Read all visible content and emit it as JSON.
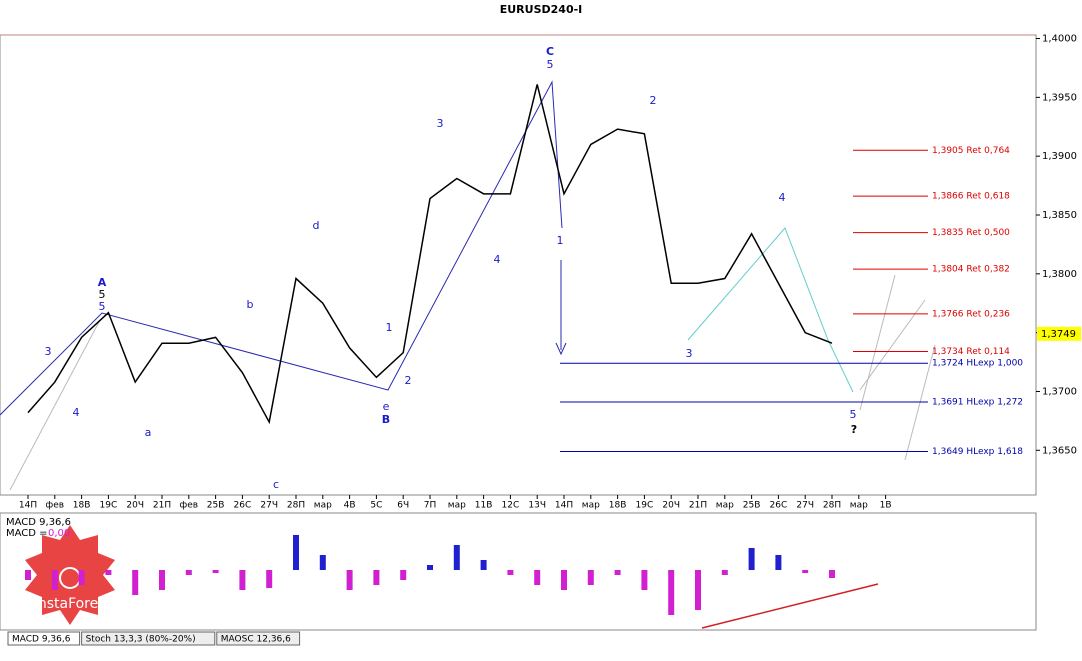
{
  "chart_data": {
    "type": "line",
    "title": "EURUSD240-I",
    "categories": [
      "14П",
      "фев",
      "18В",
      "19С",
      "20Ч",
      "21П",
      "фев",
      "25В",
      "26С",
      "27Ч",
      "28П",
      "мар",
      "4В",
      "5С",
      "6Ч",
      "7П",
      "мар",
      "11В",
      "12С",
      "13Ч",
      "14П",
      "мар",
      "18В",
      "19С",
      "20Ч",
      "21П",
      "мар",
      "25В",
      "26С",
      "27Ч",
      "28П",
      "мар",
      "1В"
    ],
    "values": [
      1.3682,
      1.3708,
      1.3746,
      1.3767,
      1.3708,
      1.3741,
      1.3741,
      1.3746,
      1.3716,
      1.3674,
      1.3796,
      1.3775,
      1.3737,
      1.3712,
      1.3733,
      1.3864,
      1.3881,
      1.3868,
      1.3868,
      1.3961,
      1.3868,
      1.391,
      1.3923,
      1.3919,
      1.3792,
      1.3792,
      1.3796,
      1.3834,
      1.3792,
      1.375,
      1.3741,
      null,
      null
    ],
    "color": "#000000",
    "ylim": [
      1.3612,
      1.4003
    ],
    "yticks": [
      {
        "value": 1.365,
        "label": "1,3650"
      },
      {
        "value": 1.37,
        "label": "1,3700"
      },
      {
        "value": 1.375,
        "label": "1,3750"
      },
      {
        "value": 1.38,
        "label": "1,3800"
      },
      {
        "value": 1.385,
        "label": "1,3850"
      },
      {
        "value": 1.39,
        "label": "1,3900"
      },
      {
        "value": 1.395,
        "label": "1,3950"
      },
      {
        "value": 1.4,
        "label": "1,4000"
      }
    ],
    "current_price": {
      "value": 1.3749,
      "label": "1,3749"
    },
    "levels": [
      {
        "value": 1.3905,
        "label": "1,3905 Ret 0,764",
        "color": "#dd0000"
      },
      {
        "value": 1.3866,
        "label": "1,3866 Ret 0,618",
        "color": "#dd0000"
      },
      {
        "value": 1.3835,
        "label": "1,3835 Ret 0,500",
        "color": "#dd0000"
      },
      {
        "value": 1.3804,
        "label": "1,3804 Ret 0,382",
        "color": "#dd0000"
      },
      {
        "value": 1.3766,
        "label": "1,3766 Ret 0,236",
        "color": "#dd0000"
      },
      {
        "value": 1.3734,
        "label": "1,3734 Ret 0,114",
        "color": "#dd0000"
      },
      {
        "value": 1.3724,
        "label": "1,3724 HLexp 1,000",
        "color": "#0000aa"
      },
      {
        "value": 1.3691,
        "label": "1,3691 HLexp 1,272",
        "color": "#0000aa"
      },
      {
        "value": 1.3649,
        "label": "1,3649 HLexp 1,618",
        "color": "#0000aa"
      }
    ],
    "waves": [
      {
        "text": "A",
        "color": "#1a1acc"
      },
      {
        "text": "5",
        "color": "#000000"
      },
      {
        "text": "5",
        "color": "#1a1acc"
      },
      {
        "text": "B",
        "color": "#1a1acc"
      },
      {
        "text": "e",
        "color": "#1a1acc"
      },
      {
        "text": "C",
        "color": "#1a1acc"
      },
      {
        "text": "5",
        "color": "#1a1acc"
      },
      {
        "text": "3",
        "color": "#1a1acc"
      },
      {
        "text": "4",
        "color": "#1a1acc"
      },
      {
        "text": "d",
        "color": "#1a1acc"
      },
      {
        "text": "b",
        "color": "#1a1acc"
      },
      {
        "text": "a",
        "color": "#1a1acc"
      },
      {
        "text": "c",
        "color": "#1a1acc"
      },
      {
        "text": "1",
        "color": "#1a1acc"
      },
      {
        "text": "2",
        "color": "#1a1acc"
      },
      {
        "text": "3",
        "color": "#1a1acc"
      },
      {
        "text": "4",
        "color": "#1a1acc"
      },
      {
        "text": "1",
        "color": "#1a1acc"
      },
      {
        "text": "2",
        "color": "#1a1acc"
      },
      {
        "text": "3",
        "color": "#1a1acc"
      },
      {
        "text": "4",
        "color": "#1a1acc"
      },
      {
        "text": "5",
        "color": "#1a1acc"
      },
      {
        "text": "?",
        "color": "#000000"
      }
    ],
    "macd": {
      "label": "MACD 9,36,6",
      "value_label": "MACD =",
      "value_text": "0,00",
      "values": [
        -10,
        -20,
        -15,
        -5,
        -25,
        -20,
        -5,
        -3,
        -20,
        -18,
        35,
        15,
        -20,
        -15,
        -10,
        5,
        25,
        10,
        -5,
        -15,
        -20,
        -15,
        -5,
        -20,
        -45,
        -40,
        -5,
        22,
        15,
        -3,
        -8,
        null,
        null
      ]
    },
    "tabs": [
      "MACD 9,36,6",
      "Stoch 13,3,3 (80%-20%)",
      "MAOSC 12,36,6"
    ],
    "logo": "InstaForex"
  }
}
